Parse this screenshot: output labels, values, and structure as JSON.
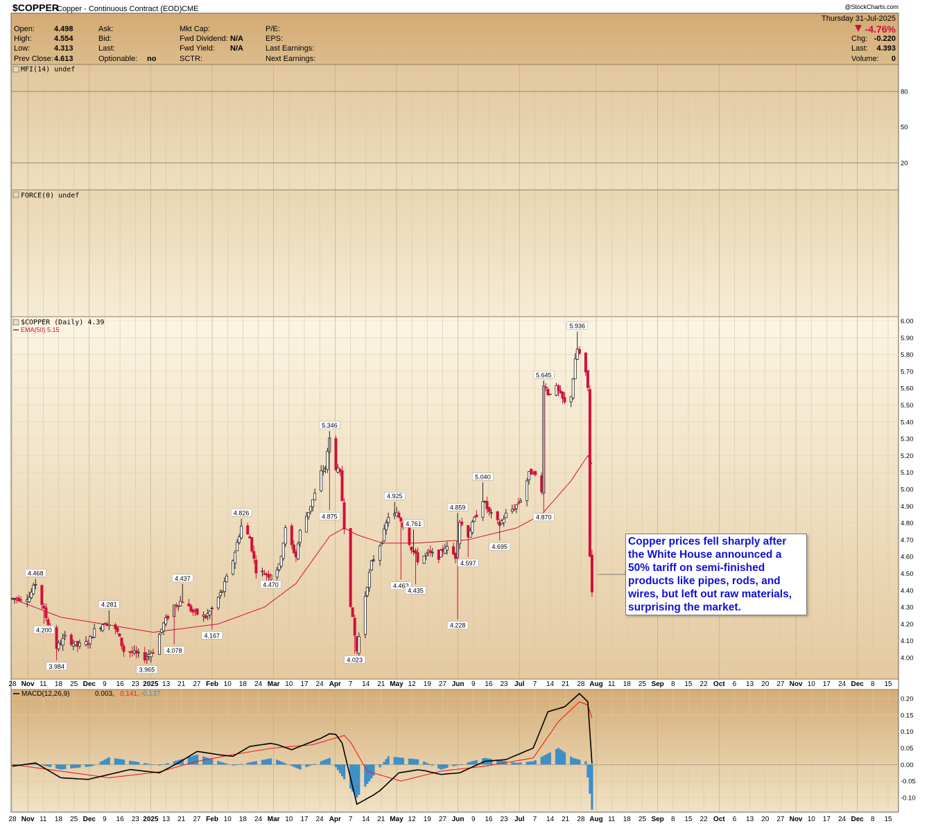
{
  "header": {
    "symbol": "$COPPER",
    "name": "Copper - Continuous Contract (EOD)",
    "exchange": "CME",
    "date": "Thursday  31-Jul-2025",
    "change_pct": "-4.76%",
    "watermark": "@StockCharts.com",
    "fields": {
      "open": {
        "label": "Open:",
        "value": "4.498"
      },
      "high": {
        "label": "High:",
        "value": "4.554"
      },
      "low": {
        "label": "Low:",
        "value": "4.313"
      },
      "prev_close": {
        "label": "Prev Close:",
        "value": "4.613"
      },
      "ask": {
        "label": "Ask:",
        "value": ""
      },
      "bid": {
        "label": "Bid:",
        "value": ""
      },
      "last_q": {
        "label": "Last:",
        "value": ""
      },
      "optionable": {
        "label": "Optionable:",
        "value": "no"
      },
      "mkt_cap": {
        "label": "Mkt Cap:",
        "value": ""
      },
      "fwd_div": {
        "label": "Fwd Dividend:",
        "value": "N/A"
      },
      "fwd_yield": {
        "label": "Fwd Yield:",
        "value": "N/A"
      },
      "sctr": {
        "label": "SCTR:",
        "value": ""
      },
      "pe": {
        "label": "P/E:",
        "value": ""
      },
      "eps": {
        "label": "EPS:",
        "value": ""
      },
      "last_earn": {
        "label": "Last Earnings:",
        "value": ""
      },
      "next_earn": {
        "label": "Next Earnings:",
        "value": ""
      },
      "chg": {
        "label": "Chg:",
        "value": "-0.220"
      },
      "last": {
        "label": "Last:",
        "value": "4.393"
      },
      "volume": {
        "label": "Volume:",
        "value": "0"
      }
    }
  },
  "panels": {
    "mfi_label": "MFI(14) undef",
    "force_label": "FORCE(0) undef",
    "price_label": "$COPPER (Daily) 4.39",
    "ema_label": "EMA(50) 5.15",
    "macd_label": "MACD(12,26,9)",
    "macd_v1": "0.003,",
    "macd_v2": "0.141,",
    "macd_v3": "-0.137"
  },
  "annotation": "Copper prices fell sharply after the White House announced a 50% tariff on semi-finished products like pipes, rods, and wires, but left out raw materials, surprising the market.",
  "colors": {
    "panel_bg": "#efe3c6",
    "header_bg": "#d6b07a",
    "up": "#222222",
    "down": "#d0103a",
    "ema": "#d0103a",
    "macd": "#000000",
    "signal": "#e8201c",
    "hist": "#3c8fc8",
    "annotation_text": "#1010d8"
  },
  "chart_data": [
    {
      "type": "candlestick",
      "title": "$COPPER (Daily) 4.39",
      "y_axis_ticks": [
        "6.00",
        "5.90",
        "5.80",
        "5.70",
        "5.60",
        "5.50",
        "5.40",
        "5.30",
        "5.20",
        "5.10",
        "5.00",
        "4.90",
        "4.80",
        "4.70",
        "4.60",
        "4.50",
        "4.40",
        "4.30",
        "4.20",
        "4.10",
        "4.00"
      ],
      "ylim": [
        3.93,
        6.03
      ],
      "x_tick_labels": [
        "28",
        "Nov",
        "11",
        "18",
        "25",
        "Dec",
        "9",
        "16",
        "23",
        "2025",
        "13",
        "21",
        "27",
        "Feb",
        "10",
        "18",
        "24",
        "Mar",
        "10",
        "17",
        "24",
        "Apr",
        "7",
        "14",
        "21",
        "May",
        "12",
        "19",
        "27",
        "Jun",
        "9",
        "16",
        "23",
        "Jul",
        "7",
        "14",
        "21",
        "28",
        "Aug",
        "11",
        "18",
        "25",
        "Sep",
        "8",
        "15",
        "22",
        "Oct",
        "6",
        "13",
        "20",
        "27",
        "Nov",
        "10",
        "17",
        "24",
        "Dec",
        "8",
        "15"
      ],
      "x_range": [
        "2024-10-28",
        "2025-12-19"
      ],
      "price_path": [
        [
          "2024-10-28",
          4.35
        ],
        [
          "2024-11-05",
          4.36
        ],
        [
          "2024-11-08",
          4.44
        ],
        [
          "2024-11-13",
          4.24
        ],
        [
          "2024-11-18",
          4.06
        ],
        [
          "2024-11-22",
          4.12
        ],
        [
          "2024-11-28",
          4.07
        ],
        [
          "2024-12-03",
          4.09
        ],
        [
          "2024-12-06",
          4.16
        ],
        [
          "2024-12-11",
          4.21
        ],
        [
          "2024-12-13",
          4.2
        ],
        [
          "2024-12-17",
          4.15
        ],
        [
          "2024-12-20",
          4.04
        ],
        [
          "2024-12-24",
          4.03
        ],
        [
          "2024-12-30",
          4.0
        ],
        [
          "2025-01-03",
          4.04
        ],
        [
          "2025-01-08",
          4.2
        ],
        [
          "2025-01-13",
          4.31
        ],
        [
          "2025-01-17",
          4.34
        ],
        [
          "2025-01-22",
          4.27
        ],
        [
          "2025-01-28",
          4.24
        ],
        [
          "2025-01-31",
          4.29
        ],
        [
          "2025-02-05",
          4.4
        ],
        [
          "2025-02-10",
          4.58
        ],
        [
          "2025-02-14",
          4.78
        ],
        [
          "2025-02-18",
          4.71
        ],
        [
          "2025-02-21",
          4.52
        ],
        [
          "2025-02-27",
          4.49
        ],
        [
          "2025-03-04",
          4.54
        ],
        [
          "2025-03-07",
          4.76
        ],
        [
          "2025-03-12",
          4.6
        ],
        [
          "2025-03-14",
          4.75
        ],
        [
          "2025-03-18",
          4.87
        ],
        [
          "2025-03-21",
          4.97
        ],
        [
          "2025-03-24",
          5.1
        ],
        [
          "2025-03-26",
          5.13
        ],
        [
          "2025-03-28",
          5.3
        ],
        [
          "2025-03-31",
          5.13
        ],
        [
          "2025-04-02",
          5.09
        ],
        [
          "2025-04-04",
          4.78
        ],
        [
          "2025-04-07",
          4.32
        ],
        [
          "2025-04-09",
          4.13
        ],
        [
          "2025-04-10",
          4.04
        ],
        [
          "2025-04-14",
          4.37
        ],
        [
          "2025-04-17",
          4.56
        ],
        [
          "2025-04-22",
          4.7
        ],
        [
          "2025-04-25",
          4.84
        ],
        [
          "2025-04-29",
          4.85
        ],
        [
          "2025-05-01",
          4.82
        ],
        [
          "2025-05-06",
          4.65
        ],
        [
          "2025-05-09",
          4.58
        ],
        [
          "2025-05-14",
          4.62
        ],
        [
          "2025-05-19",
          4.6
        ],
        [
          "2025-05-22",
          4.66
        ],
        [
          "2025-05-27",
          4.6
        ],
        [
          "2025-05-29",
          4.81
        ],
        [
          "2025-06-02",
          4.73
        ],
        [
          "2025-06-05",
          4.82
        ],
        [
          "2025-06-09",
          4.94
        ],
        [
          "2025-06-12",
          4.86
        ],
        [
          "2025-06-17",
          4.79
        ],
        [
          "2025-06-20",
          4.85
        ],
        [
          "2025-06-24",
          4.89
        ],
        [
          "2025-06-27",
          4.94
        ],
        [
          "2025-07-01",
          5.09
        ],
        [
          "2025-07-03",
          5.11
        ],
        [
          "2025-07-07",
          4.98
        ],
        [
          "2025-07-08",
          5.63
        ],
        [
          "2025-07-10",
          5.57
        ],
        [
          "2025-07-14",
          5.6
        ],
        [
          "2025-07-18",
          5.51
        ],
        [
          "2025-07-21",
          5.56
        ],
        [
          "2025-07-23",
          5.76
        ],
        [
          "2025-07-24",
          5.83
        ],
        [
          "2025-07-25",
          5.8
        ],
        [
          "2025-07-28",
          5.68
        ],
        [
          "2025-07-29",
          5.6
        ],
        [
          "2025-07-30",
          4.61
        ],
        [
          "2025-07-31",
          4.39
        ]
      ],
      "ema50_path": [
        [
          "2024-10-28",
          4.35
        ],
        [
          "2024-11-20",
          4.24
        ],
        [
          "2024-12-10",
          4.2
        ],
        [
          "2025-01-03",
          4.15
        ],
        [
          "2025-02-03",
          4.2
        ],
        [
          "2025-02-25",
          4.3
        ],
        [
          "2025-03-12",
          4.44
        ],
        [
          "2025-03-28",
          4.72
        ],
        [
          "2025-04-04",
          4.77
        ],
        [
          "2025-04-10",
          4.73
        ],
        [
          "2025-04-22",
          4.68
        ],
        [
          "2025-05-08",
          4.68
        ],
        [
          "2025-06-02",
          4.7
        ],
        [
          "2025-06-25",
          4.77
        ],
        [
          "2025-07-07",
          4.85
        ],
        [
          "2025-07-21",
          5.05
        ],
        [
          "2025-07-29",
          5.2
        ],
        [
          "2025-07-31",
          5.15
        ]
      ],
      "price_labels": [
        {
          "date": "2024-11-08",
          "value": "4.468",
          "pos": "above"
        },
        {
          "date": "2024-11-12",
          "value": "4.200",
          "pos": "below"
        },
        {
          "date": "2024-11-18",
          "value": "3.984",
          "pos": "below"
        },
        {
          "date": "2024-12-13",
          "value": "4.281",
          "pos": "above"
        },
        {
          "date": "2024-12-31",
          "value": "3.965",
          "pos": "below"
        },
        {
          "date": "2025-01-13",
          "value": "4.078",
          "pos": "below"
        },
        {
          "date": "2025-01-17",
          "value": "4.437",
          "pos": "above"
        },
        {
          "date": "2025-01-31",
          "value": "4.167",
          "pos": "below"
        },
        {
          "date": "2025-02-14",
          "value": "4.826",
          "pos": "above"
        },
        {
          "date": "2025-02-28",
          "value": "4.470",
          "pos": "below"
        },
        {
          "date": "2025-03-28",
          "value": "5.346",
          "pos": "above"
        },
        {
          "date": "2025-03-28",
          "value": "4.875",
          "pos": "below"
        },
        {
          "date": "2025-04-09",
          "value": "4.023",
          "pos": "below"
        },
        {
          "date": "2025-04-28",
          "value": "4.925",
          "pos": "above"
        },
        {
          "date": "2025-05-01",
          "value": "4.462",
          "pos": "below"
        },
        {
          "date": "2025-05-07",
          "value": "4.761",
          "pos": "above"
        },
        {
          "date": "2025-05-08",
          "value": "4.435",
          "pos": "below"
        },
        {
          "date": "2025-05-28",
          "value": "4.859",
          "pos": "above"
        },
        {
          "date": "2025-05-28",
          "value": "4.228",
          "pos": "below"
        },
        {
          "date": "2025-06-02",
          "value": "4.597",
          "pos": "below"
        },
        {
          "date": "2025-06-09",
          "value": "5.040",
          "pos": "above"
        },
        {
          "date": "2025-06-17",
          "value": "4.695",
          "pos": "below"
        },
        {
          "date": "2025-07-08",
          "value": "5.645",
          "pos": "above"
        },
        {
          "date": "2025-07-08",
          "value": "4.870",
          "pos": "below"
        },
        {
          "date": "2025-07-24",
          "value": "5.936",
          "pos": "above"
        }
      ],
      "legend": [
        "$COPPER (Daily) 4.39",
        "EMA(50) 5.15"
      ]
    },
    {
      "type": "line",
      "title": "MACD(12,26,9)",
      "y_axis_ticks": [
        "0.20",
        "0.15",
        "0.10",
        "0.05",
        "0.00",
        "-0.05",
        "-0.10"
      ],
      "ylim": [
        -0.145,
        0.225
      ],
      "series": [
        {
          "name": "MACD(12,26,9) 0.003",
          "path": [
            [
              "2024-10-28",
              -0.005
            ],
            [
              "2024-11-08",
              0.005
            ],
            [
              "2024-11-20",
              -0.04
            ],
            [
              "2024-12-03",
              -0.045
            ],
            [
              "2024-12-13",
              -0.03
            ],
            [
              "2024-12-23",
              -0.015
            ],
            [
              "2025-01-06",
              -0.025
            ],
            [
              "2025-01-15",
              0.005
            ],
            [
              "2025-01-24",
              0.04
            ],
            [
              "2025-02-03",
              0.03
            ],
            [
              "2025-02-10",
              0.025
            ],
            [
              "2025-02-18",
              0.055
            ],
            [
              "2025-03-01",
              0.065
            ],
            [
              "2025-03-10",
              0.045
            ],
            [
              "2025-03-24",
              0.08
            ],
            [
              "2025-03-30",
              0.1
            ],
            [
              "2025-04-03",
              0.065
            ],
            [
              "2025-04-10",
              -0.12
            ],
            [
              "2025-04-20",
              -0.085
            ],
            [
              "2025-04-30",
              -0.025
            ],
            [
              "2025-05-10",
              -0.015
            ],
            [
              "2025-05-20",
              -0.03
            ],
            [
              "2025-05-29",
              -0.025
            ],
            [
              "2025-06-10",
              0.01
            ],
            [
              "2025-06-20",
              0.015
            ],
            [
              "2025-07-03",
              0.05
            ],
            [
              "2025-07-10",
              0.16
            ],
            [
              "2025-07-18",
              0.175
            ],
            [
              "2025-07-25",
              0.215
            ],
            [
              "2025-07-29",
              0.19
            ],
            [
              "2025-07-31",
              0.003
            ]
          ]
        },
        {
          "name": "0.141",
          "path": [
            [
              "2024-10-28",
              0.0
            ],
            [
              "2024-11-20",
              -0.02
            ],
            [
              "2024-12-13",
              -0.04
            ],
            [
              "2025-01-06",
              -0.022
            ],
            [
              "2025-01-24",
              0.01
            ],
            [
              "2025-02-10",
              0.03
            ],
            [
              "2025-03-01",
              0.05
            ],
            [
              "2025-03-20",
              0.06
            ],
            [
              "2025-04-05",
              0.09
            ],
            [
              "2025-04-15",
              -0.02
            ],
            [
              "2025-05-01",
              -0.05
            ],
            [
              "2025-05-20",
              -0.02
            ],
            [
              "2025-06-10",
              -0.005
            ],
            [
              "2025-07-03",
              0.02
            ],
            [
              "2025-07-15",
              0.13
            ],
            [
              "2025-07-25",
              0.19
            ],
            [
              "2025-07-29",
              0.18
            ],
            [
              "2025-07-31",
              0.141
            ]
          ]
        },
        {
          "name": "-0.137",
          "kind": "histogram"
        }
      ],
      "histogram_path": [
        [
          "2024-10-28",
          -0.005
        ],
        [
          "2024-11-08",
          0.003
        ],
        [
          "2024-11-20",
          -0.015
        ],
        [
          "2024-12-05",
          -0.005
        ],
        [
          "2024-12-13",
          0.022
        ],
        [
          "2025-01-06",
          -0.003
        ],
        [
          "2025-01-24",
          0.03
        ],
        [
          "2025-02-10",
          -0.003
        ],
        [
          "2025-03-01",
          0.02
        ],
        [
          "2025-03-14",
          -0.015
        ],
        [
          "2025-03-28",
          0.02
        ],
        [
          "2025-04-10",
          -0.1
        ],
        [
          "2025-04-25",
          0.025
        ],
        [
          "2025-05-10",
          0.015
        ],
        [
          "2025-05-20",
          -0.015
        ],
        [
          "2025-06-10",
          0.02
        ],
        [
          "2025-06-25",
          0.005
        ],
        [
          "2025-07-03",
          0.01
        ],
        [
          "2025-07-15",
          0.05
        ],
        [
          "2025-07-22",
          0.02
        ],
        [
          "2025-07-28",
          0.01
        ],
        [
          "2025-07-31",
          -0.137
        ]
      ]
    }
  ]
}
